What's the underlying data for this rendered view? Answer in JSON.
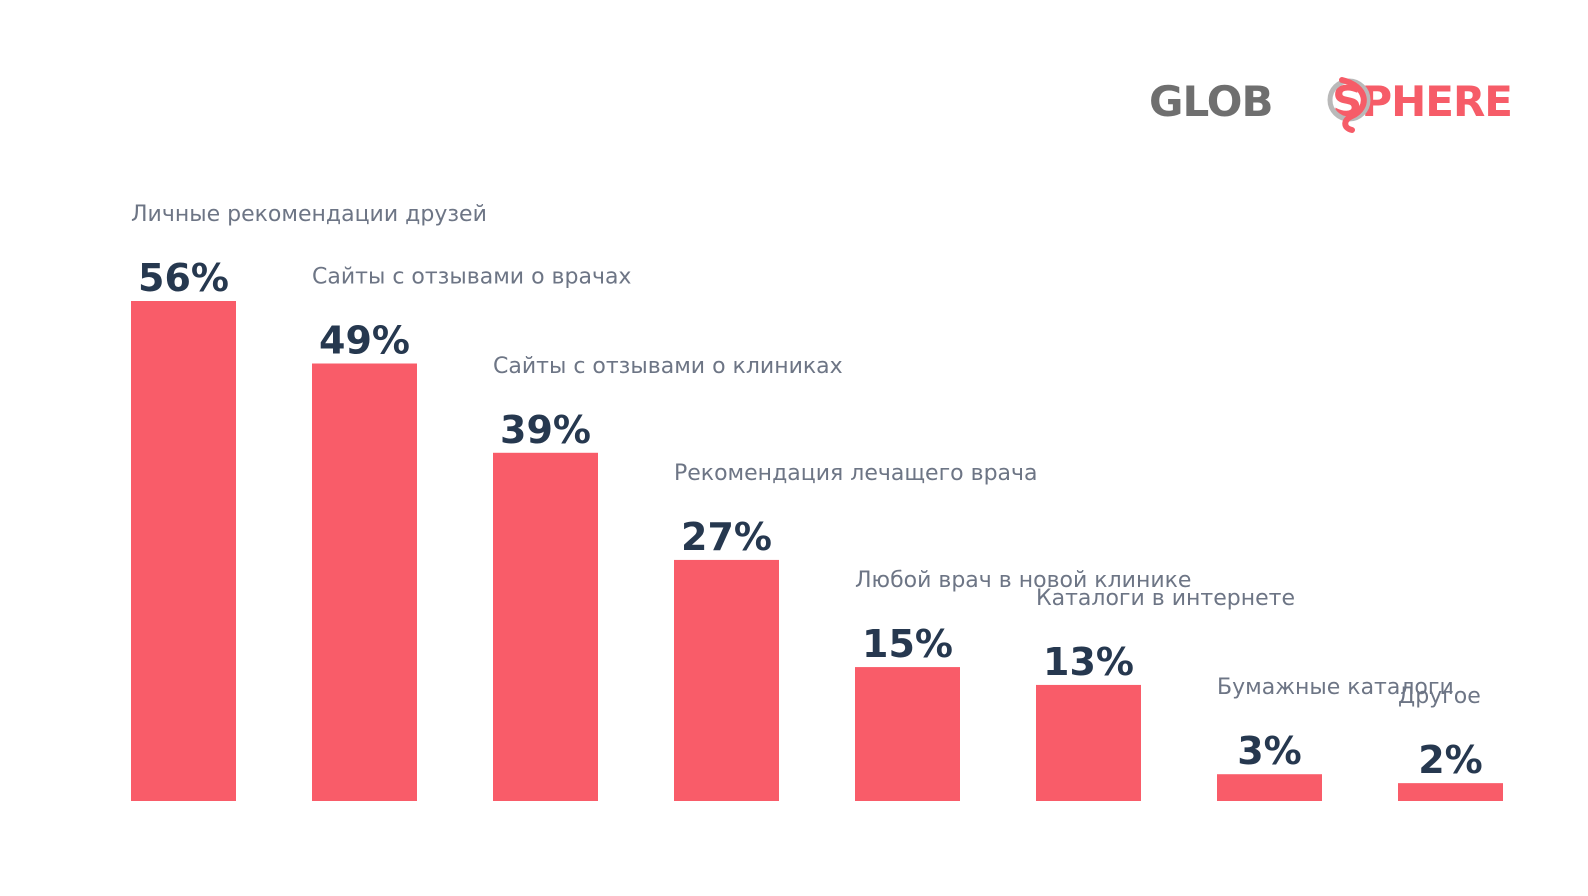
{
  "logo": {
    "part1": "GLOB",
    "part2": "SPHERE",
    "color_gray": "#6f6f6f",
    "color_accent": "#f65c68"
  },
  "colors": {
    "bar": "#f95c69",
    "value_text": "#26384f",
    "category_text": "#6d7585"
  },
  "chart_data": {
    "type": "bar",
    "categories": [
      "Личные рекомендации друзей",
      "Сайты с отзывами о врачах",
      "Сайты с отзывами о клиниках",
      "Рекомендация лечащего врача",
      "Любой врач в новой клинике",
      "Каталоги в интернете",
      "Бумажные каталоги",
      "Другое"
    ],
    "values": [
      56,
      49,
      39,
      27,
      15,
      13,
      3,
      2
    ],
    "value_labels": [
      "56%",
      "49%",
      "39%",
      "27%",
      "15%",
      "13%",
      "3%",
      "2%"
    ],
    "title": "",
    "xlabel": "",
    "ylabel": "",
    "grid": false
  }
}
